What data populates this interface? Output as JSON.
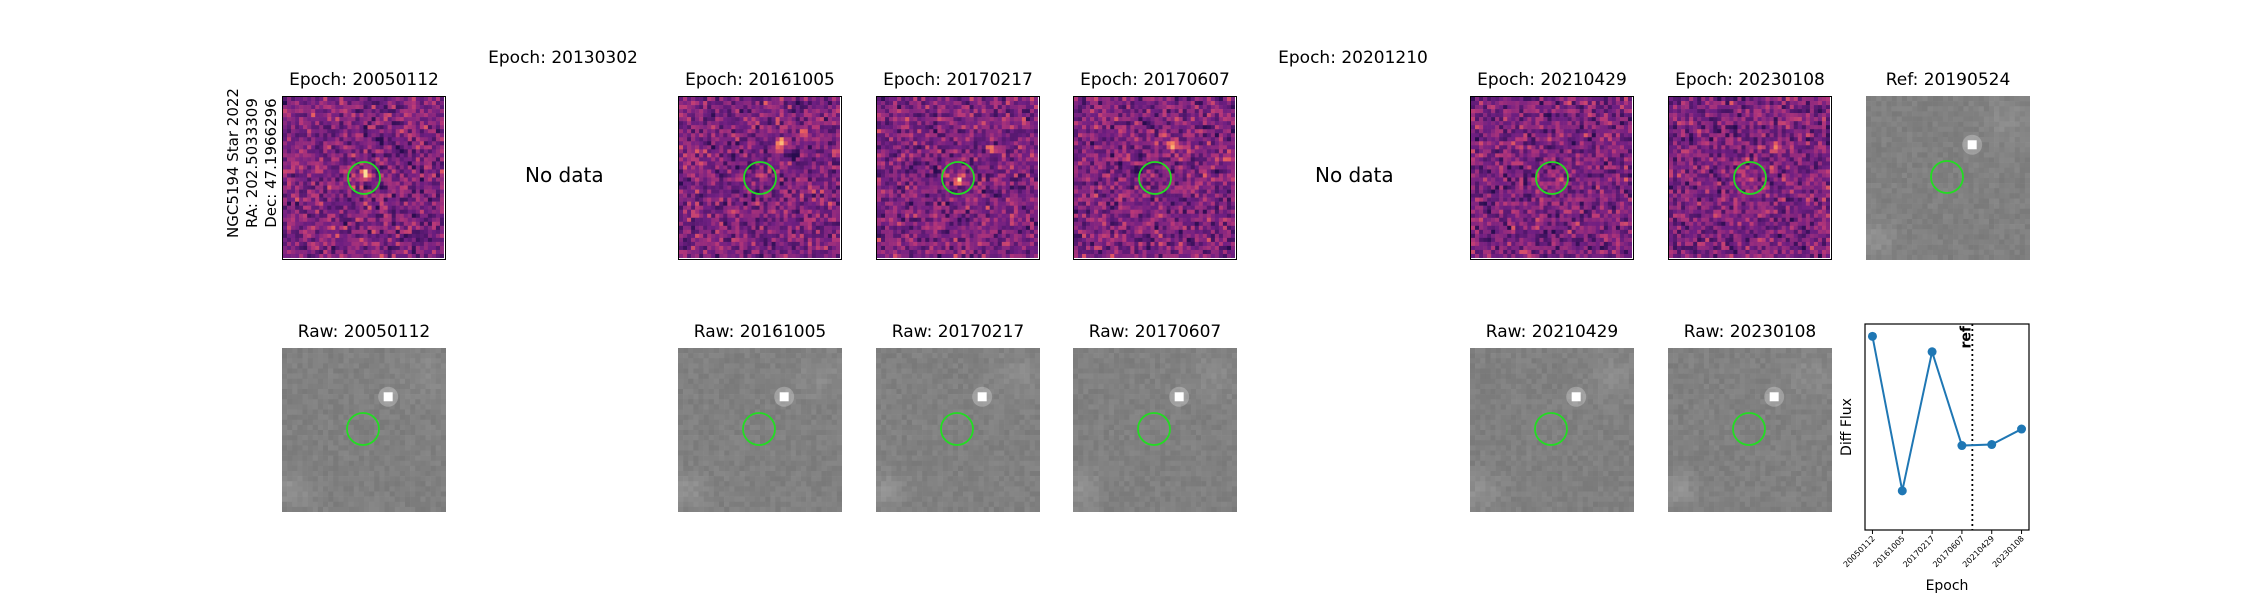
{
  "figure": {
    "target": {
      "name": "NGC5194 Star 2022",
      "ra": "RA: 202.5033309",
      "dec": "Dec: 47.1966296"
    },
    "no_data_label": "No data",
    "diff_panels": [
      {
        "title": "Epoch: 20050112",
        "has_data": true,
        "seed": 11,
        "spots": [
          [
            0.5,
            0.47,
            1.0,
            "pos"
          ],
          [
            0.72,
            0.32,
            0.7,
            "neg"
          ],
          [
            0.6,
            0.25,
            0.5,
            "neg"
          ]
        ]
      },
      {
        "title": "Epoch: 20130302",
        "has_data": false
      },
      {
        "title": "Epoch: 20161005",
        "has_data": true,
        "seed": 23,
        "spots": [
          [
            0.63,
            0.28,
            1.0,
            "pos"
          ],
          [
            0.7,
            0.35,
            0.8,
            "neg"
          ],
          [
            0.43,
            0.42,
            0.7,
            "neg"
          ],
          [
            0.78,
            0.22,
            0.6,
            "pos"
          ]
        ]
      },
      {
        "title": "Epoch: 20170217",
        "has_data": true,
        "seed": 37,
        "spots": [
          [
            0.5,
            0.5,
            1.0,
            "pos"
          ],
          [
            0.35,
            0.45,
            0.7,
            "neg"
          ],
          [
            0.7,
            0.3,
            0.5,
            "pos"
          ]
        ]
      },
      {
        "title": "Epoch: 20170607",
        "has_data": true,
        "seed": 41,
        "spots": [
          [
            0.6,
            0.28,
            0.7,
            "pos"
          ],
          [
            0.4,
            0.45,
            0.6,
            "neg"
          ],
          [
            0.95,
            0.35,
            0.6,
            "pos"
          ]
        ]
      },
      {
        "title": "Epoch: 20201210",
        "has_data": false
      },
      {
        "title": "Epoch: 20210429",
        "has_data": true,
        "seed": 53,
        "spots": [
          [
            0.62,
            0.28,
            0.6,
            "neg"
          ],
          [
            0.55,
            0.5,
            0.4,
            "pos"
          ]
        ]
      },
      {
        "title": "Epoch: 20230108",
        "has_data": true,
        "seed": 67,
        "spots": [
          [
            0.65,
            0.3,
            0.8,
            "pos"
          ],
          [
            0.5,
            0.5,
            0.4,
            "pos"
          ]
        ]
      }
    ],
    "ref_panel": {
      "title": "Ref: 20190524"
    },
    "raw_panels": [
      {
        "title": "Raw: 20050112",
        "slot": 0
      },
      {
        "title": "Raw: 20161005",
        "slot": 2
      },
      {
        "title": "Raw: 20170217",
        "slot": 3
      },
      {
        "title": "Raw: 20170607",
        "slot": 4
      },
      {
        "title": "Raw: 20210429",
        "slot": 6
      },
      {
        "title": "Raw: 20230108",
        "slot": 7
      }
    ],
    "colors": {
      "circle": "#22dd22",
      "line": "#1f77b4"
    }
  },
  "chart_data": {
    "type": "line",
    "categories": [
      "20050112",
      "20161005",
      "20170217",
      "20170607",
      "20210429",
      "20230108"
    ],
    "x_index": [
      0,
      1,
      2,
      3,
      4,
      5
    ],
    "values": [
      0.88,
      -0.62,
      0.73,
      -0.18,
      -0.17,
      -0.02
    ],
    "ylim": [
      -1.0,
      1.0
    ],
    "xlabel": "Epoch",
    "ylabel": "Diff Flux",
    "ref_line": {
      "x_index": 3.35,
      "label": "ref"
    },
    "grid": false,
    "yticks_shown": false
  }
}
